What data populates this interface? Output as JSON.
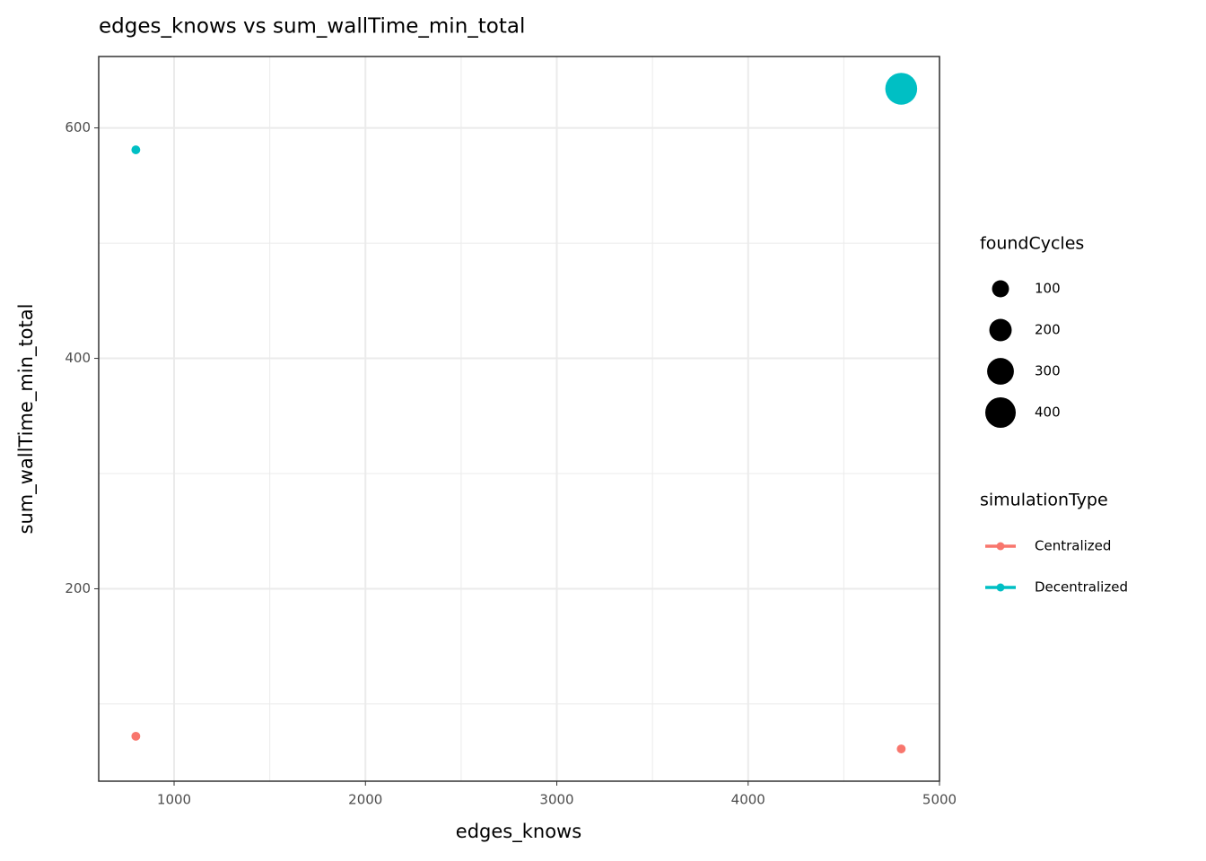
{
  "chart_data": {
    "type": "scatter",
    "title": "edges_knows  vs  sum_wallTime_min_total",
    "x_label": "edges_knows",
    "y_label": "sum_wallTime_min_total",
    "xlim": [
      606,
      5000
    ],
    "xticks": [
      1000,
      2000,
      3000,
      4000,
      5000
    ],
    "ylim": [
      33,
      662
    ],
    "yticks": [
      200,
      400,
      600
    ],
    "grid": true,
    "minor_grid": true,
    "color_legend_title": "simulationType",
    "size_legend": {
      "title": "foundCycles",
      "values": [
        100,
        200,
        300,
        400
      ]
    },
    "series": [
      {
        "name": "Centralized",
        "color": "#F8766D",
        "x": [
          800,
          4800
        ],
        "values": [
          72,
          61
        ],
        "sizes": [
          2,
          2
        ]
      },
      {
        "name": "Decentralized",
        "color": "#00BFC4",
        "x": [
          800,
          4800
        ],
        "values": [
          581,
          634
        ],
        "sizes": [
          2,
          440
        ]
      }
    ]
  }
}
